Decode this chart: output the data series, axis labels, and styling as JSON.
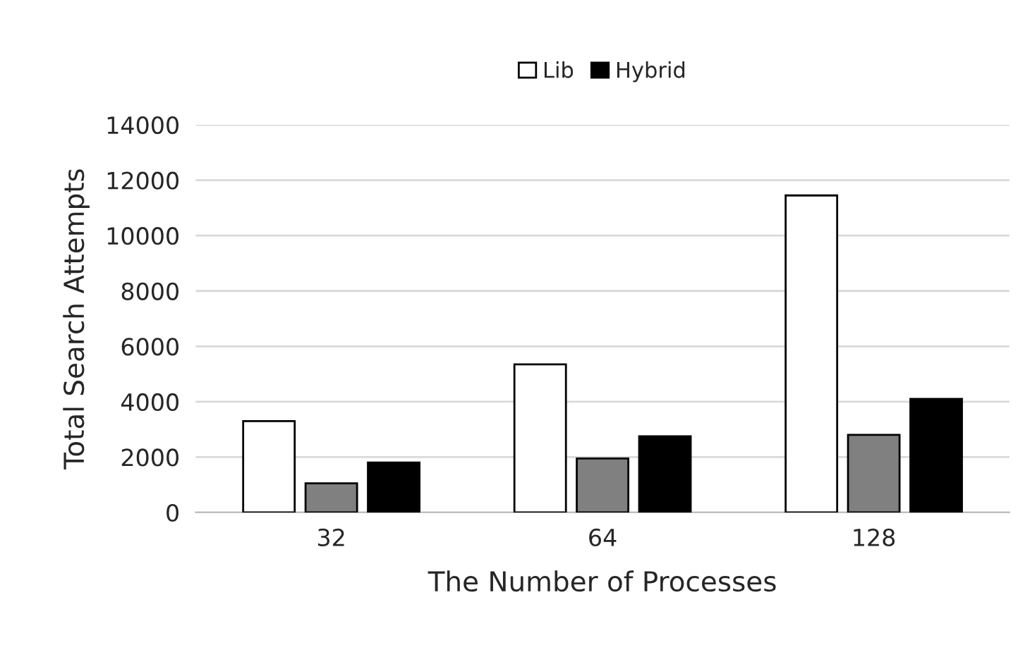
{
  "chart_data": {
    "type": "bar",
    "xlabel": "The Number of Processes",
    "ylabel": "Total Search Attempts",
    "categories": [
      "32",
      "64",
      "128"
    ],
    "series": [
      {
        "name": "Lib",
        "color": "#ffffff",
        "values": [
          3300,
          5350,
          11450
        ]
      },
      {
        "color": "#808080",
        "values": [
          1050,
          1950,
          2800
        ]
      },
      {
        "name": "Hybrid",
        "color": "#000000",
        "values": [
          1800,
          2750,
          4100
        ]
      }
    ],
    "ylim": [
      0,
      14000
    ],
    "yticks": [
      0,
      2000,
      4000,
      6000,
      8000,
      10000,
      12000,
      14000
    ],
    "grid": "y",
    "legend": "top"
  }
}
